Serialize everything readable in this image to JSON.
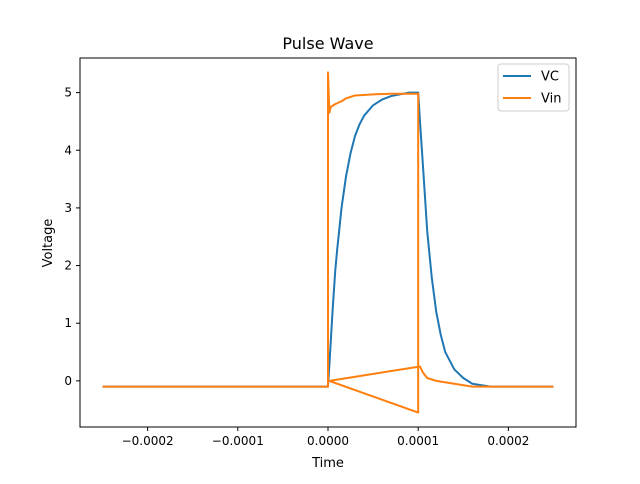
{
  "chart_data": {
    "type": "line",
    "title": "Pulse Wave",
    "xlabel": "Time",
    "ylabel": "Voltage",
    "xlim": [
      -0.000275,
      0.000275
    ],
    "ylim": [
      -0.8,
      5.6
    ],
    "xticks": [
      {
        "value": -0.0002,
        "label": "−0.0002"
      },
      {
        "value": -0.0001,
        "label": "−0.0001"
      },
      {
        "value": 0.0,
        "label": "0.0000"
      },
      {
        "value": 0.0001,
        "label": "0.0001"
      },
      {
        "value": 0.0002,
        "label": "0.0002"
      }
    ],
    "yticks": [
      {
        "value": 0,
        "label": "0"
      },
      {
        "value": 1,
        "label": "1"
      },
      {
        "value": 2,
        "label": "2"
      },
      {
        "value": 3,
        "label": "3"
      },
      {
        "value": 4,
        "label": "4"
      },
      {
        "value": 5,
        "label": "5"
      }
    ],
    "grid": false,
    "legend_position": "top-right",
    "series": [
      {
        "name": "VC",
        "color": "#1f77b4",
        "points": [
          [
            -0.00025,
            -0.1
          ],
          [
            -0.0002,
            -0.1
          ],
          [
            -0.0001,
            -0.1
          ],
          [
            0.0,
            -0.1
          ],
          [
            2e-06,
            0.4
          ],
          [
            5e-06,
            1.2
          ],
          [
            8e-06,
            1.9
          ],
          [
            1e-05,
            2.25
          ],
          [
            1.5e-05,
            3.0
          ],
          [
            2e-05,
            3.55
          ],
          [
            2.5e-05,
            3.95
          ],
          [
            3e-05,
            4.25
          ],
          [
            3.5e-05,
            4.45
          ],
          [
            4e-05,
            4.6
          ],
          [
            5e-05,
            4.78
          ],
          [
            6e-05,
            4.88
          ],
          [
            7e-05,
            4.94
          ],
          [
            8e-05,
            4.97
          ],
          [
            9e-05,
            5.0
          ],
          [
            0.0001,
            5.0
          ],
          [
            0.000102,
            4.5
          ],
          [
            0.000105,
            3.8
          ],
          [
            0.00011,
            2.6
          ],
          [
            0.000115,
            1.8
          ],
          [
            0.00012,
            1.2
          ],
          [
            0.000125,
            0.8
          ],
          [
            0.00013,
            0.5
          ],
          [
            0.00014,
            0.2
          ],
          [
            0.00015,
            0.05
          ],
          [
            0.00016,
            -0.05
          ],
          [
            0.00018,
            -0.1
          ],
          [
            0.0002,
            -0.1
          ],
          [
            0.00025,
            -0.1
          ]
        ]
      },
      {
        "name": "Vin",
        "color": "#ff7f0e",
        "points": [
          [
            -0.00025,
            -0.1
          ],
          [
            -0.0002,
            -0.1
          ],
          [
            -0.0001,
            -0.1
          ],
          [
            0.0,
            -0.1
          ],
          [
            0.0,
            5.35
          ],
          [
            1.5e-06,
            4.65
          ],
          [
            3e-06,
            4.75
          ],
          [
            8e-06,
            4.8
          ],
          [
            1.5e-05,
            4.85
          ],
          [
            2e-05,
            4.9
          ],
          [
            3e-05,
            4.95
          ],
          [
            5e-05,
            4.97
          ],
          [
            7e-05,
            4.98
          ],
          [
            0.0001,
            4.98
          ],
          [
            0.0001,
            -0.55
          ],
          [
            1.5001e-06,
            0
          ],
          [
            0.000102,
            0.25
          ],
          [
            0.000105,
            0.15
          ],
          [
            0.00011,
            0.05
          ],
          [
            0.00012,
            0.0
          ],
          [
            0.00014,
            -0.05
          ],
          [
            0.00016,
            -0.1
          ],
          [
            0.0002,
            -0.1
          ],
          [
            0.00025,
            -0.1
          ]
        ]
      }
    ]
  }
}
